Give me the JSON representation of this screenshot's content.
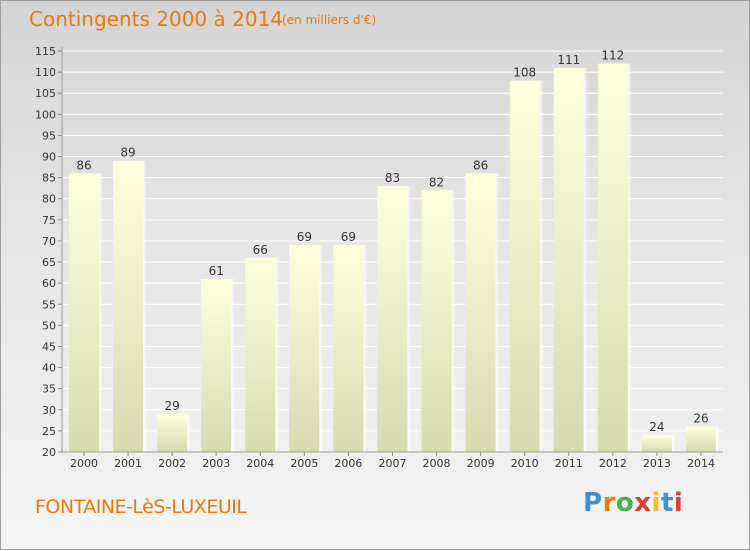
{
  "title": "Contingents 2000 à 2014",
  "unit_note": "(en milliers d'€)",
  "town": "FONTAINE-LèS-LUXEUIL",
  "logo": {
    "text": "Proxiti",
    "letter_colors": [
      "#3a8fd6",
      "#e8790d",
      "#4caf50",
      "#e53935",
      "#f2c12e",
      "#3a8fd6",
      "#e53935"
    ]
  },
  "colors": {
    "accent": "#e8790d",
    "bar_top": "#ffffdc",
    "bar_bottom": "#d9d9b0",
    "grid": "#ffffff",
    "axis_text": "#333333"
  },
  "chart_data": {
    "type": "bar",
    "categories": [
      "2000",
      "2001",
      "2002",
      "2003",
      "2004",
      "2005",
      "2006",
      "2007",
      "2008",
      "2009",
      "2010",
      "2011",
      "2012",
      "2013",
      "2014"
    ],
    "values": [
      86,
      89,
      29,
      61,
      66,
      69,
      69,
      83,
      82,
      86,
      108,
      111,
      112,
      24,
      26
    ],
    "ylim": [
      20,
      115
    ],
    "yticks": [
      20,
      25,
      30,
      35,
      40,
      45,
      50,
      55,
      60,
      65,
      70,
      75,
      80,
      85,
      90,
      95,
      100,
      105,
      110,
      115
    ],
    "grid": true,
    "data_labels": true
  }
}
